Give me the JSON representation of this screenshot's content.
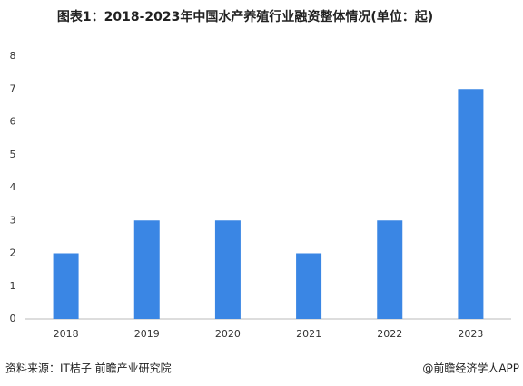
{
  "chart_data": {
    "type": "bar",
    "title": "图表1：2018-2023年中国水产养殖行业融资整体情况(单位：起)",
    "categories": [
      "2018",
      "2019",
      "2020",
      "2021",
      "2022",
      "2023"
    ],
    "values": [
      2,
      3,
      3,
      2,
      3,
      7
    ],
    "color": "#3a86e4",
    "ylim": [
      0,
      8
    ],
    "yticks": [
      0,
      1,
      2,
      3,
      4,
      5,
      6,
      7,
      8
    ],
    "grid": false,
    "source": "资料来源：IT桔子 前瞻产业研究院",
    "credit": "@前瞻经济学人APP"
  }
}
